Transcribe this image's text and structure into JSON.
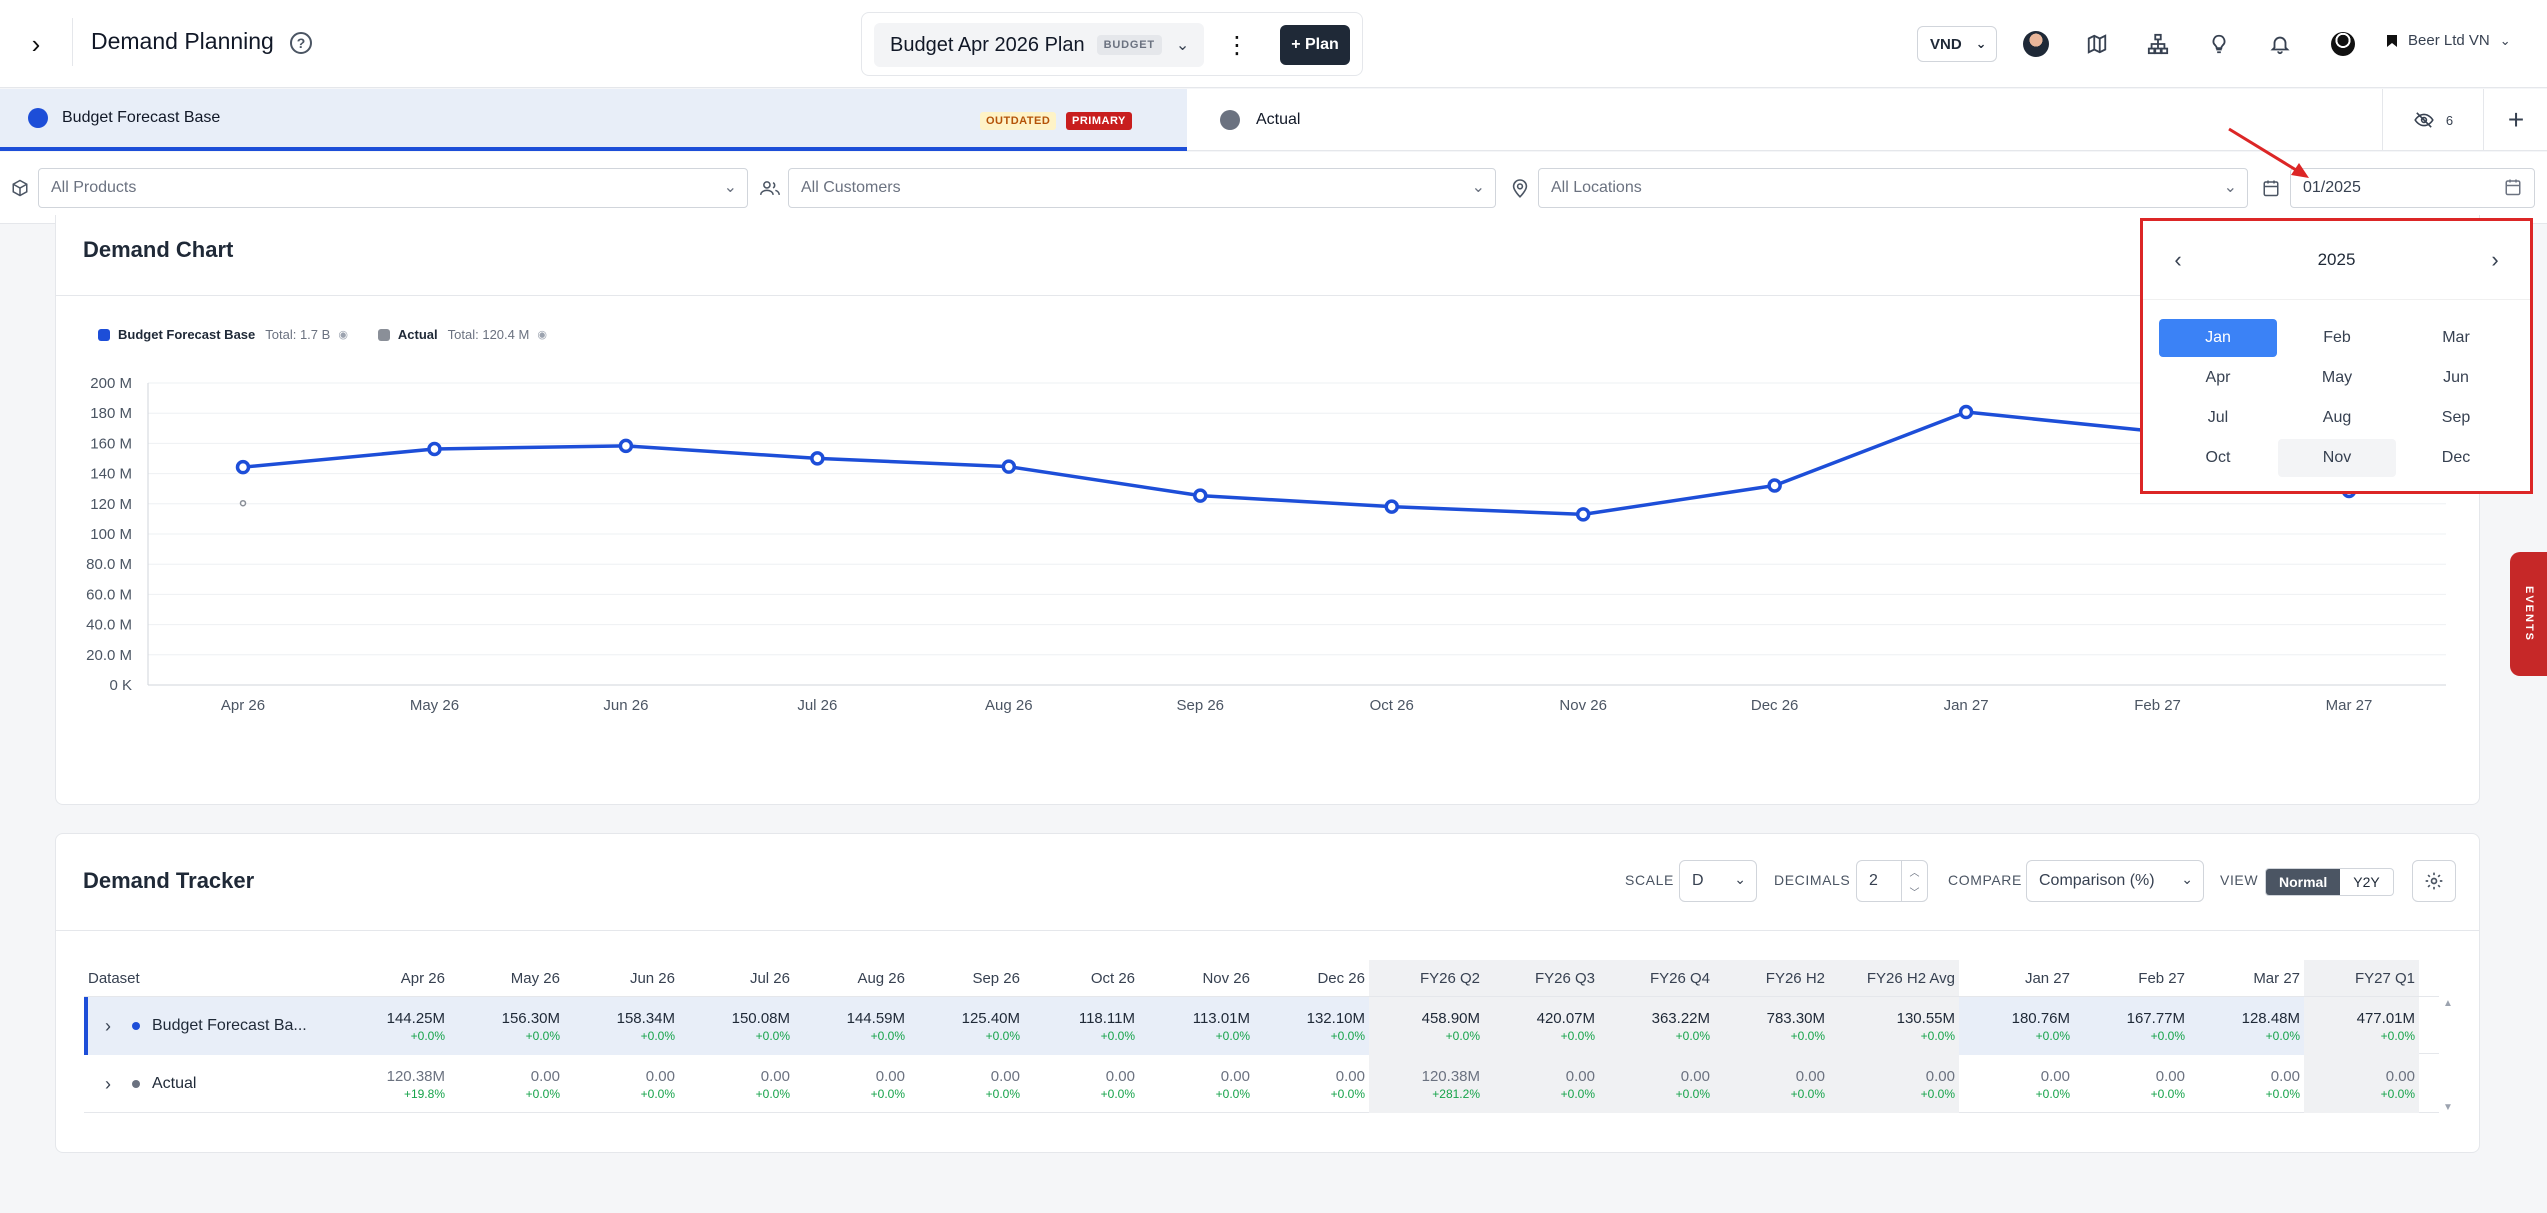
{
  "header": {
    "title": "Demand Planning",
    "plan_name": "Budget Apr 2026 Plan",
    "plan_badge": "BUDGET",
    "add_plan_label": "+ Plan",
    "currency": "VND",
    "company": "Beer Ltd VN"
  },
  "datasets": {
    "primary": {
      "name": "Budget Forecast Base",
      "tag_outdated": "OUTDATED",
      "tag_primary": "PRIMARY",
      "color": "#1d4ed8"
    },
    "secondary": {
      "name": "Actual",
      "color": "#6b7280"
    },
    "hidden_count": "6"
  },
  "filters": {
    "products": "All Products",
    "customers": "All Customers",
    "locations": "All Locations",
    "date": "01/2025"
  },
  "calendar": {
    "year": "2025",
    "months": [
      "Jan",
      "Feb",
      "Mar",
      "Apr",
      "May",
      "Jun",
      "Jul",
      "Aug",
      "Sep",
      "Oct",
      "Nov",
      "Dec"
    ],
    "selected": "Jan",
    "hovered": "Nov"
  },
  "chart": {
    "title": "Demand Chart",
    "legend": [
      {
        "name": "Budget Forecast Base",
        "total": "Total: 1.7 B",
        "color": "#1d4ed8"
      },
      {
        "name": "Actual",
        "total": "Total: 120.4 M",
        "color": "#8a8f98"
      }
    ]
  },
  "chart_data": {
    "type": "line",
    "categories": [
      "Apr 26",
      "May 26",
      "Jun 26",
      "Jul 26",
      "Aug 26",
      "Sep 26",
      "Oct 26",
      "Nov 26",
      "Dec 26",
      "Jan 27",
      "Feb 27",
      "Mar 27"
    ],
    "series": [
      {
        "name": "Budget Forecast Base",
        "values": [
          144.25,
          156.3,
          158.34,
          150.08,
          144.59,
          125.4,
          118.11,
          113.01,
          132.1,
          180.76,
          167.77,
          128.48
        ]
      },
      {
        "name": "Actual",
        "values": [
          120.38,
          null,
          null,
          null,
          null,
          null,
          null,
          null,
          null,
          null,
          null,
          null
        ]
      }
    ],
    "yticks": [
      "0 K",
      "20.0 M",
      "40.0 M",
      "60.0 M",
      "80.0 M",
      "100 M",
      "120 M",
      "140 M",
      "160 M",
      "180 M",
      "200 M"
    ],
    "ylim": [
      0,
      200
    ],
    "grid": true
  },
  "tracker": {
    "title": "Demand Tracker",
    "scale_label": "SCALE",
    "scale_value": "D",
    "decimals_label": "DECIMALS",
    "decimals_value": "2",
    "compare_label": "COMPARE",
    "compare_value": "Comparison (%)",
    "view_label": "VIEW",
    "view_options": [
      "Normal",
      "Y2Y"
    ],
    "dataset_header": "Dataset",
    "columns": [
      "Apr 26",
      "May 26",
      "Jun 26",
      "Jul 26",
      "Aug 26",
      "Sep 26",
      "Oct 26",
      "Nov 26",
      "Dec 26",
      "FY26 Q2",
      "FY26 Q3",
      "FY26 Q4",
      "FY26 H2",
      "FY26 H2 Avg",
      "Jan 27",
      "Feb 27",
      "Mar 27",
      "FY27 Q1"
    ],
    "rows": [
      {
        "name": "Budget Forecast Ba...",
        "values": [
          "144.25M",
          "156.30M",
          "158.34M",
          "150.08M",
          "144.59M",
          "125.40M",
          "118.11M",
          "113.01M",
          "132.10M",
          "458.90M",
          "420.07M",
          "363.22M",
          "783.30M",
          "130.55M",
          "180.76M",
          "167.77M",
          "128.48M",
          "477.01M"
        ],
        "pct": [
          "+0.0%",
          "+0.0%",
          "+0.0%",
          "+0.0%",
          "+0.0%",
          "+0.0%",
          "+0.0%",
          "+0.0%",
          "+0.0%",
          "+0.0%",
          "+0.0%",
          "+0.0%",
          "+0.0%",
          "+0.0%",
          "+0.0%",
          "+0.0%",
          "+0.0%",
          "+0.0%"
        ]
      },
      {
        "name": "Actual",
        "values": [
          "120.38M",
          "0.00",
          "0.00",
          "0.00",
          "0.00",
          "0.00",
          "0.00",
          "0.00",
          "0.00",
          "120.38M",
          "0.00",
          "0.00",
          "0.00",
          "0.00",
          "0.00",
          "0.00",
          "0.00",
          "0.00"
        ],
        "pct": [
          "+19.8%",
          "+0.0%",
          "+0.0%",
          "+0.0%",
          "+0.0%",
          "+0.0%",
          "+0.0%",
          "+0.0%",
          "+0.0%",
          "+281.2%",
          "+0.0%",
          "+0.0%",
          "+0.0%",
          "+0.0%",
          "+0.0%",
          "+0.0%",
          "+0.0%",
          "+0.0%"
        ]
      }
    ]
  },
  "events_label": "EVENTS"
}
